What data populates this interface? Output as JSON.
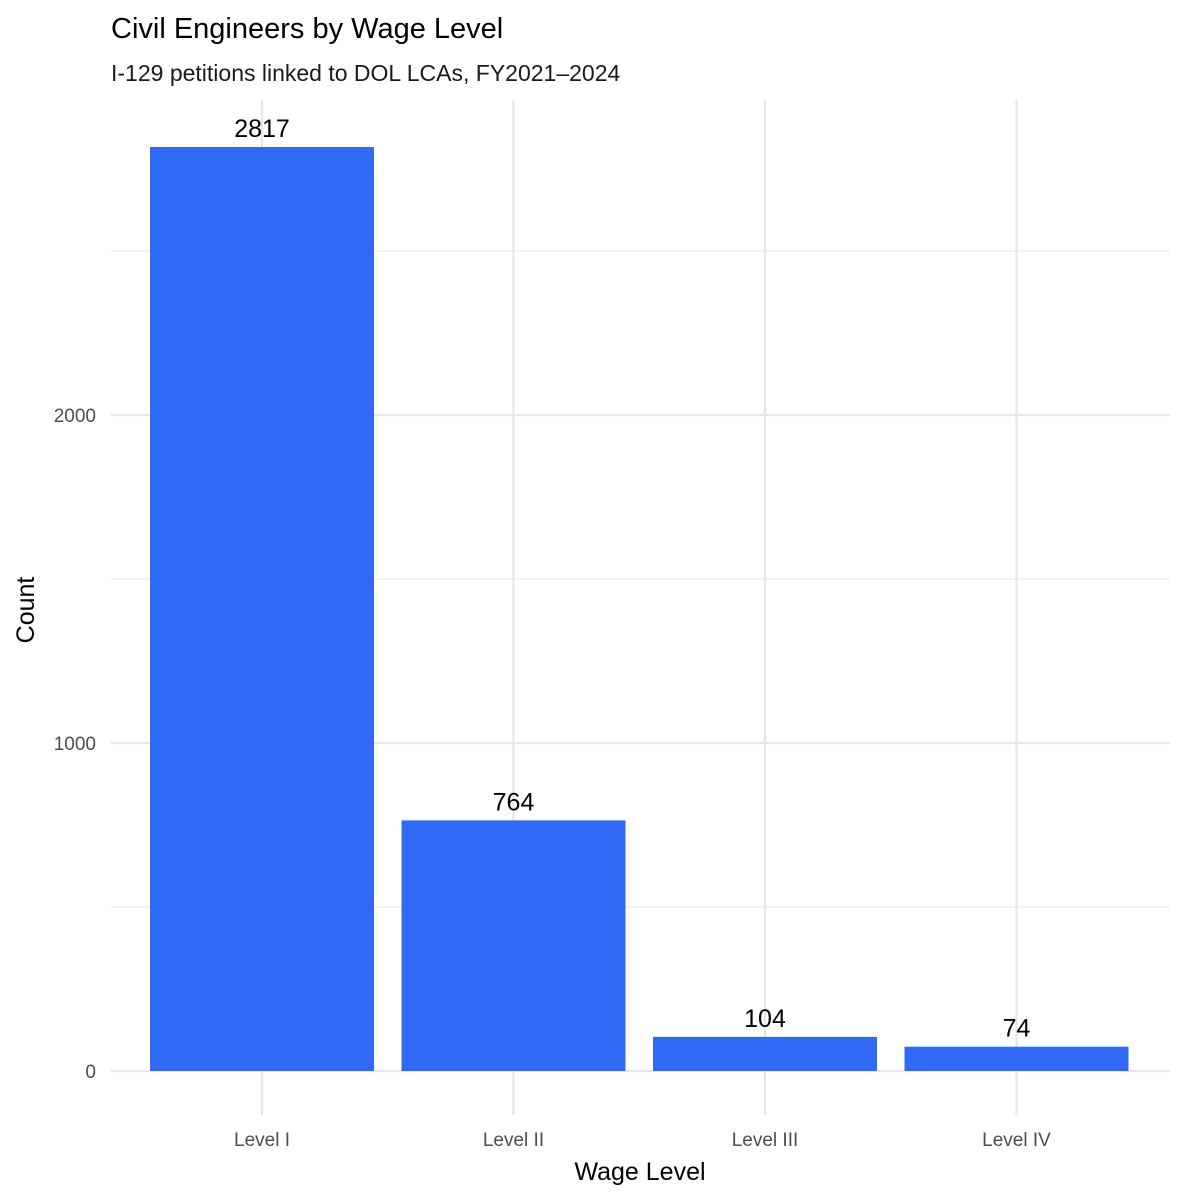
{
  "chart_data": {
    "type": "bar",
    "title": "Civil Engineers by Wage Level",
    "subtitle": "I-129 petitions linked to DOL LCAs, FY2021–2024",
    "xlabel": "Wage Level",
    "ylabel": "Count",
    "categories": [
      "Level I",
      "Level II",
      "Level III",
      "Level IV"
    ],
    "values": [
      2817,
      764,
      104,
      74
    ],
    "data_labels": [
      "2817",
      "764",
      "104",
      "74"
    ],
    "yticks": [
      0,
      1000,
      2000
    ],
    "ytick_labels": [
      "0",
      "1000",
      "2000"
    ],
    "ylim": [
      0,
      3000
    ],
    "grid": true,
    "legend": "none",
    "bar_color": "#3069F3"
  }
}
